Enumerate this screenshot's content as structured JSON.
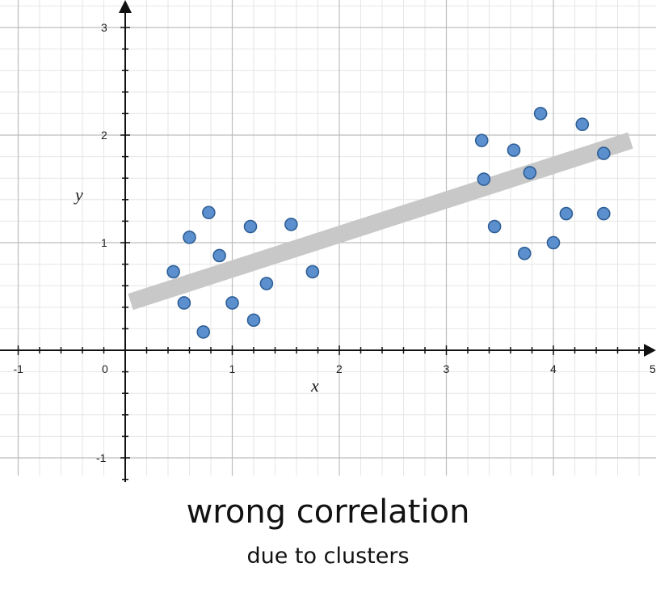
{
  "caption": {
    "title": "wrong correlation",
    "subtitle": "due to clusters"
  },
  "chart_data": {
    "type": "scatter",
    "xlabel": "x",
    "ylabel": "y",
    "xlim": [
      -1.15,
      5
    ],
    "ylim": [
      -1.2,
      3.2
    ],
    "x_ticks": [
      -1,
      0,
      1,
      2,
      3,
      4,
      5
    ],
    "y_ticks": [
      -1,
      1,
      2,
      3
    ],
    "grid": true,
    "minor_grid_step": 0.2,
    "legend": "none",
    "colors": {
      "point_fill": "#5b8fcd",
      "point_stroke": "#2f5f96",
      "trend_line": "#c8c8c8",
      "major_grid": "#bdbdbd",
      "minor_grid": "#e6e6e6",
      "axis": "#111111"
    },
    "series": [
      {
        "x": [
          0.45,
          0.55,
          0.6,
          0.73,
          0.78,
          0.88,
          1.0,
          1.17,
          1.2,
          1.32,
          1.55,
          1.75,
          3.33,
          3.35,
          3.45,
          3.63,
          3.73,
          3.78,
          3.88,
          4.0,
          4.12,
          4.27,
          4.47,
          4.47
        ],
        "y": [
          0.73,
          0.44,
          1.05,
          0.17,
          1.28,
          0.88,
          0.44,
          1.15,
          0.28,
          0.62,
          1.17,
          0.73,
          1.95,
          1.59,
          1.15,
          1.86,
          0.9,
          1.65,
          2.2,
          1.0,
          1.27,
          2.1,
          1.83,
          1.27
        ]
      }
    ],
    "trend_line": {
      "x": [
        0.05,
        4.72
      ],
      "y": [
        0.45,
        1.95
      ]
    }
  }
}
